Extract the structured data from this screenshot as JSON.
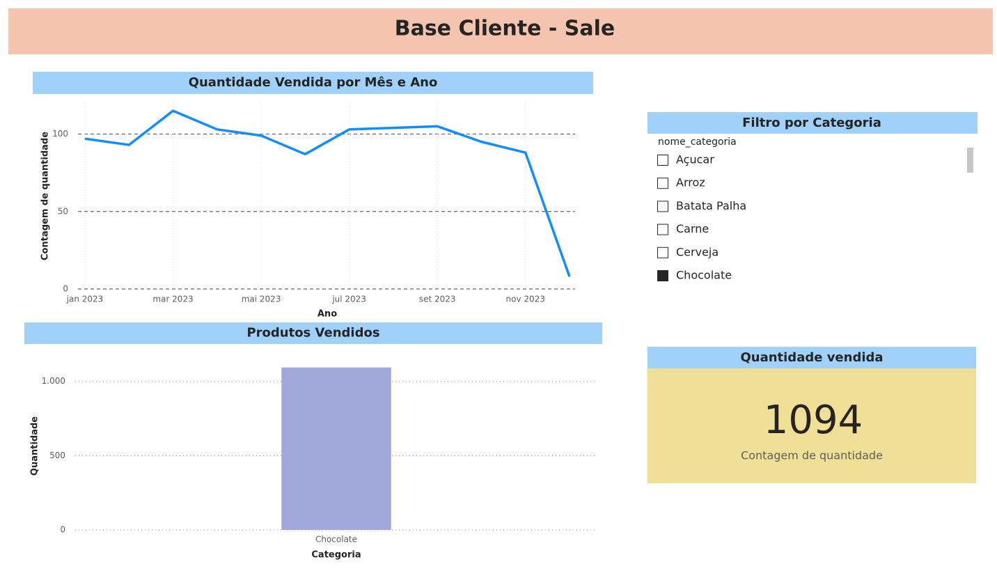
{
  "header": {
    "title": "Base Cliente - Sale"
  },
  "chart_data": [
    {
      "type": "line",
      "title": "Quantidade Vendida por Mês e Ano",
      "x_label": "Ano",
      "y_label": "Contagem de quantidade",
      "categories": [
        "jan 2023",
        null,
        "mar 2023",
        null,
        "mai 2023",
        null,
        "jul 2023",
        null,
        "set 2023",
        null,
        "nov 2023",
        null
      ],
      "values": [
        97,
        93,
        115,
        103,
        99,
        87,
        103,
        104,
        105,
        95,
        88,
        8
      ],
      "color": "#118dff",
      "ylim": [
        0,
        120
      ],
      "yticks": [
        0,
        50,
        100
      ],
      "grid": true
    },
    {
      "type": "bar",
      "title": "Produtos Vendidos",
      "x_label": "Categoria",
      "y_label": "Quantidade",
      "categories": [
        "Chocolate"
      ],
      "values": [
        1094
      ],
      "color": "#a0a8da",
      "ylim": [
        0,
        1130
      ],
      "yticks": [
        0,
        500,
        {
          "value": 1000,
          "label": "1.000"
        }
      ],
      "grid": true
    }
  ],
  "slicer": {
    "title": "Filtro por Categoria",
    "field": "nome_categoria",
    "items": [
      {
        "label": "Açucar",
        "selected": false
      },
      {
        "label": "Arroz",
        "selected": false
      },
      {
        "label": "Batata Palha",
        "selected": false
      },
      {
        "label": "Carne",
        "selected": false
      },
      {
        "label": "Cerveja",
        "selected": false
      },
      {
        "label": "Chocolate",
        "selected": true
      }
    ]
  },
  "card": {
    "title": "Quantidade vendida",
    "value": 1094,
    "label": "Contagem de quantidade"
  }
}
